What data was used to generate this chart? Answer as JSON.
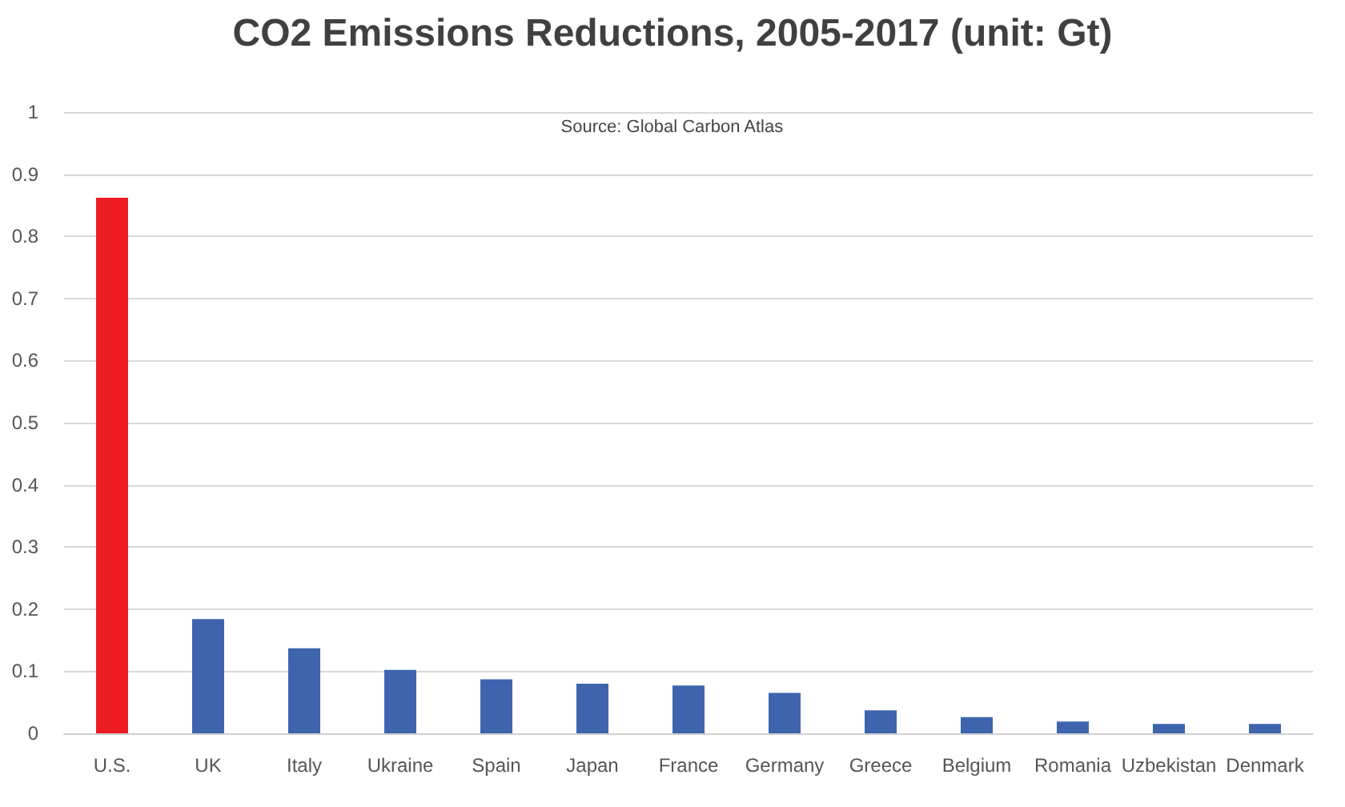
{
  "chart_data": {
    "type": "bar",
    "title": "CO2 Emissions Reductions, 2005-2017 (unit: Gt)",
    "annotations": [
      "Source: Global Carbon Atlas"
    ],
    "categories": [
      "U.S.",
      "UK",
      "Italy",
      "Ukraine",
      "Spain",
      "Japan",
      "France",
      "Germany",
      "Greece",
      "Belgium",
      "Romania",
      "Uzbekistan",
      "Denmark"
    ],
    "values": [
      0.862,
      0.184,
      0.137,
      0.102,
      0.087,
      0.08,
      0.077,
      0.065,
      0.037,
      0.026,
      0.019,
      0.015,
      0.015
    ],
    "colors": [
      "#ed1c24",
      "#3d64ad",
      "#3d64ad",
      "#3d64ad",
      "#3d64ad",
      "#3d64ad",
      "#3d64ad",
      "#3d64ad",
      "#3d64ad",
      "#3d64ad",
      "#3d64ad",
      "#3d64ad",
      "#3d64ad"
    ],
    "ylim": [
      0,
      1
    ],
    "yticks": [
      0,
      0.1,
      0.2,
      0.3,
      0.4,
      0.5,
      0.6,
      0.7,
      0.8,
      0.9,
      1
    ],
    "grid": "y"
  }
}
